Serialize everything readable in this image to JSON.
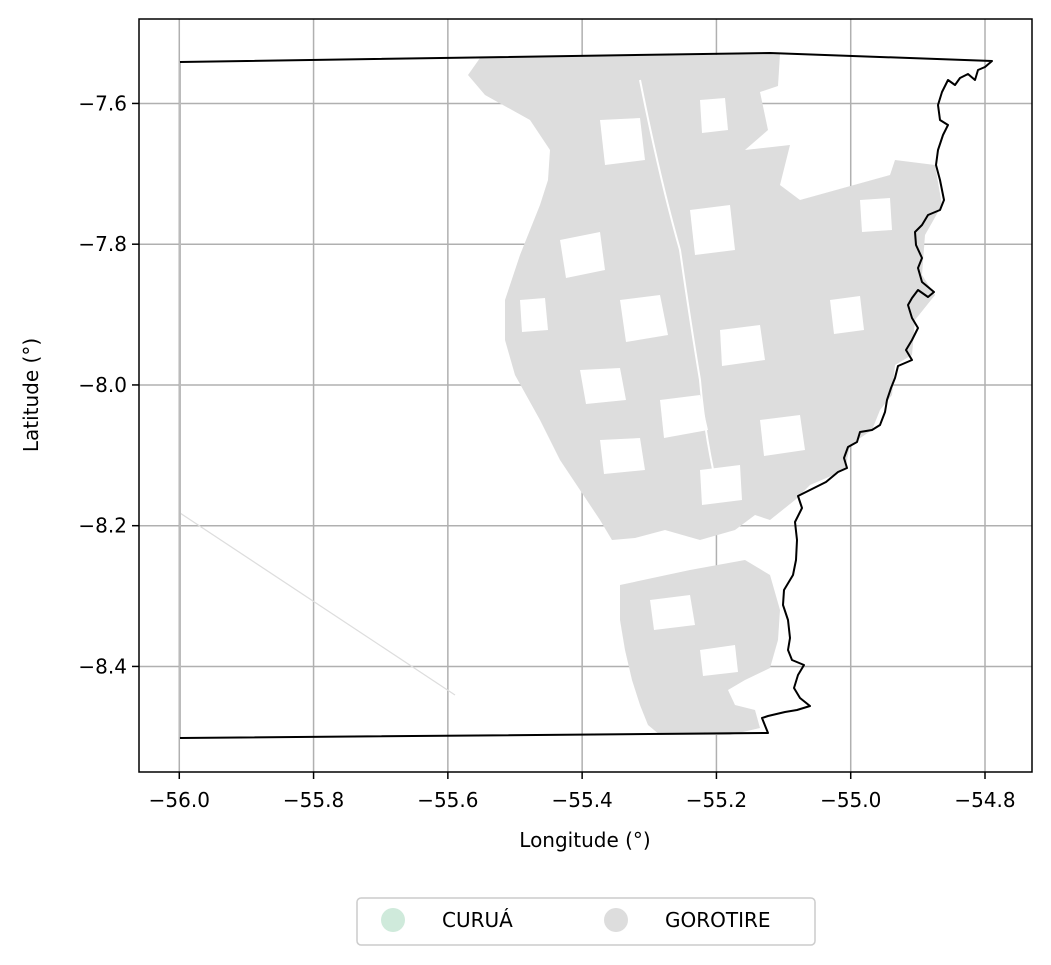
{
  "map": {
    "xlabel": "Longitude (°)",
    "ylabel": "Latitude (°)",
    "xlim": [
      -56.06,
      -54.73
    ],
    "ylim": [
      -8.55,
      -7.48
    ],
    "x_ticks": [
      -56.0,
      -55.8,
      -55.6,
      -55.4,
      -55.2,
      -55.0,
      -54.8
    ],
    "x_tick_labels": [
      "−56.0",
      "−55.8",
      "−55.6",
      "−55.4",
      "−55.2",
      "−55.0",
      "−54.8"
    ],
    "y_ticks": [
      -7.6,
      -7.8,
      -8.0,
      -8.2,
      -8.4
    ],
    "y_tick_labels": [
      "−7.6",
      "−7.8",
      "−8.0",
      "−8.2",
      "−8.4"
    ],
    "grid": true,
    "legend_position": "bottom-center",
    "legend": [
      {
        "label": "CURUÁ",
        "color": "#cfeadb"
      },
      {
        "label": "GOROTIRE",
        "color": "#dddddd"
      }
    ],
    "colors": {
      "curua": "#cfeadb",
      "gorotire": "#dddddd",
      "boundary": "#000000",
      "grid": "#b0b0b0"
    }
  }
}
